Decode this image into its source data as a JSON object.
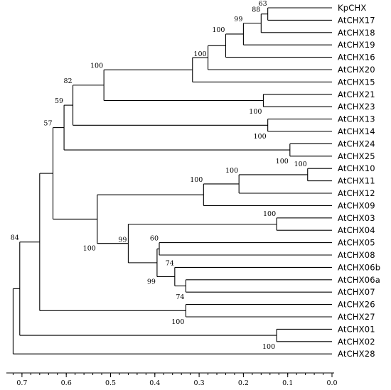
{
  "tree": {
    "leaves": [
      "KpCHX",
      "AtCHX17",
      "AtCHX18",
      "AtCHX19",
      "AtCHX16",
      "AtCHX20",
      "AtCHX15",
      "AtCHX21",
      "AtCHX23",
      "AtCHX13",
      "AtCHX14",
      "AtCHX24",
      "AtCHX25",
      "AtCHX10",
      "AtCHX11",
      "AtCHX12",
      "AtCHX09",
      "AtCHX03",
      "AtCHX04",
      "AtCHX05",
      "AtCHX08",
      "AtCHX06b",
      "AtCHX06a",
      "AtCHX07",
      "AtCHX26",
      "AtCHX27",
      "AtCHX01",
      "AtCHX02",
      "AtCHX28"
    ],
    "nodes": [
      {
        "id": "n_kp17",
        "children": [
          "KpCHX",
          "AtCHX17"
        ],
        "dist": 0.145,
        "support": "63",
        "support_pos": "above"
      },
      {
        "id": "n_18",
        "children": [
          "n_kp17",
          "AtCHX18"
        ],
        "dist": 0.16,
        "support": "88",
        "support_pos": "above"
      },
      {
        "id": "n_19",
        "children": [
          "n_18",
          "AtCHX19"
        ],
        "dist": 0.2,
        "support": "99",
        "support_pos": "above"
      },
      {
        "id": "n_16",
        "children": [
          "n_19",
          "AtCHX16"
        ],
        "dist": 0.24,
        "support": "100",
        "support_pos": "above"
      },
      {
        "id": "n_20",
        "children": [
          "n_16",
          "AtCHX20"
        ],
        "dist": 0.28,
        "support": "100",
        "support_pos": "left"
      },
      {
        "id": "n_15",
        "children": [
          "n_20",
          "AtCHX15"
        ],
        "dist": 0.315,
        "support": "",
        "support_pos": "above"
      },
      {
        "id": "n_2123",
        "children": [
          "AtCHX21",
          "AtCHX23"
        ],
        "dist": 0.155,
        "support": "100",
        "support_pos": "below"
      },
      {
        "id": "n_A",
        "children": [
          "n_15",
          "n_2123"
        ],
        "dist": 0.515,
        "support": "100",
        "support_pos": "above"
      },
      {
        "id": "n_1314",
        "children": [
          "AtCHX13",
          "AtCHX14"
        ],
        "dist": 0.145,
        "support": "100",
        "support_pos": "below"
      },
      {
        "id": "n_B",
        "children": [
          "n_A",
          "n_1314"
        ],
        "dist": 0.585,
        "support": "82",
        "support_pos": "above"
      },
      {
        "id": "n_2425",
        "children": [
          "AtCHX24",
          "AtCHX25"
        ],
        "dist": 0.095,
        "support": "100",
        "support_pos": "below"
      },
      {
        "id": "n_C",
        "children": [
          "n_B",
          "n_2425"
        ],
        "dist": 0.605,
        "support": "59",
        "support_pos": "above"
      },
      {
        "id": "n_1011",
        "children": [
          "AtCHX10",
          "AtCHX11"
        ],
        "dist": 0.055,
        "support": "100",
        "support_pos": "above"
      },
      {
        "id": "n_12",
        "children": [
          "n_1011",
          "AtCHX12"
        ],
        "dist": 0.21,
        "support": "100",
        "support_pos": "above"
      },
      {
        "id": "n_09",
        "children": [
          "n_12",
          "AtCHX09"
        ],
        "dist": 0.29,
        "support": "100",
        "support_pos": "above"
      },
      {
        "id": "n_0304",
        "children": [
          "AtCHX03",
          "AtCHX04"
        ],
        "dist": 0.125,
        "support": "100",
        "support_pos": "above"
      },
      {
        "id": "n_0508",
        "children": [
          "AtCHX05",
          "AtCHX08"
        ],
        "dist": 0.39,
        "support": "60",
        "support_pos": "above"
      },
      {
        "id": "n_06a07",
        "children": [
          "AtCHX06a",
          "AtCHX07"
        ],
        "dist": 0.33,
        "support": "74",
        "support_pos": "below"
      },
      {
        "id": "n_06b",
        "children": [
          "AtCHX06b",
          "n_06a07"
        ],
        "dist": 0.355,
        "support": "74",
        "support_pos": "above"
      },
      {
        "id": "n_D",
        "children": [
          "n_0508",
          "n_06b"
        ],
        "dist": 0.395,
        "support": "99",
        "support_pos": "below"
      },
      {
        "id": "n_E",
        "children": [
          "n_0304",
          "n_D"
        ],
        "dist": 0.46,
        "support": "99",
        "support_pos": "left"
      },
      {
        "id": "n_F",
        "children": [
          "n_09",
          "n_E"
        ],
        "dist": 0.53,
        "support": "100",
        "support_pos": "below"
      },
      {
        "id": "n_G",
        "children": [
          "n_C",
          "n_F"
        ],
        "dist": 0.63,
        "support": "57",
        "support_pos": "above"
      },
      {
        "id": "n_2627",
        "children": [
          "AtCHX26",
          "AtCHX27"
        ],
        "dist": 0.33,
        "support": "100",
        "support_pos": "below"
      },
      {
        "id": "n_H",
        "children": [
          "n_G",
          "n_2627"
        ],
        "dist": 0.66,
        "support": "",
        "support_pos": "above"
      },
      {
        "id": "n_0102",
        "children": [
          "AtCHX01",
          "AtCHX02"
        ],
        "dist": 0.125,
        "support": "100",
        "support_pos": "below"
      },
      {
        "id": "n_I",
        "children": [
          "n_H",
          "n_0102"
        ],
        "dist": 0.705,
        "support": "84",
        "support_pos": "above"
      },
      {
        "id": "root",
        "children": [
          "n_I",
          "AtCHX28"
        ],
        "dist": 0.72,
        "support": "",
        "support_pos": "above"
      }
    ]
  },
  "axis": {
    "ticks": [
      0.7,
      0.6,
      0.5,
      0.4,
      0.3,
      0.2,
      0.1,
      0.0
    ],
    "tick_labels": [
      "0.7",
      "0.6",
      "0.5",
      "0.4",
      "0.3",
      "0.2",
      "0.1",
      "0.0"
    ],
    "minor_step": 0.02
  }
}
